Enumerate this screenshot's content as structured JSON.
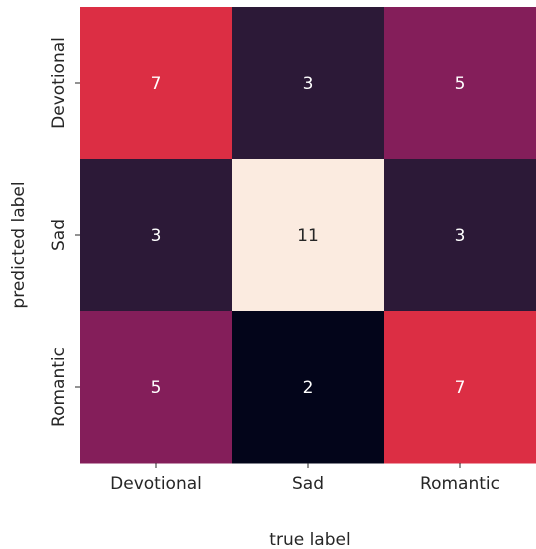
{
  "chart_data": {
    "type": "heatmap",
    "x_categories": [
      "Devotional",
      "Sad",
      "Romantic"
    ],
    "y_categories": [
      "Devotional",
      "Sad",
      "Romantic"
    ],
    "values": [
      [
        7,
        3,
        5
      ],
      [
        3,
        11,
        3
      ],
      [
        5,
        2,
        7
      ]
    ],
    "xlabel": "true label",
    "ylabel": "predicted label",
    "value_range": [
      2,
      11
    ],
    "colormap": "rocket",
    "cell_colors": [
      [
        "#dc2e44",
        "#2c1937",
        "#841e5a"
      ],
      [
        "#2c1937",
        "#fbebe0",
        "#2c1937"
      ],
      [
        "#841e5a",
        "#03051a",
        "#dc2e44"
      ]
    ],
    "annotation_color": "#ffffff",
    "annotation_dark_color": "#262626",
    "colorbar": false,
    "grid": false
  }
}
